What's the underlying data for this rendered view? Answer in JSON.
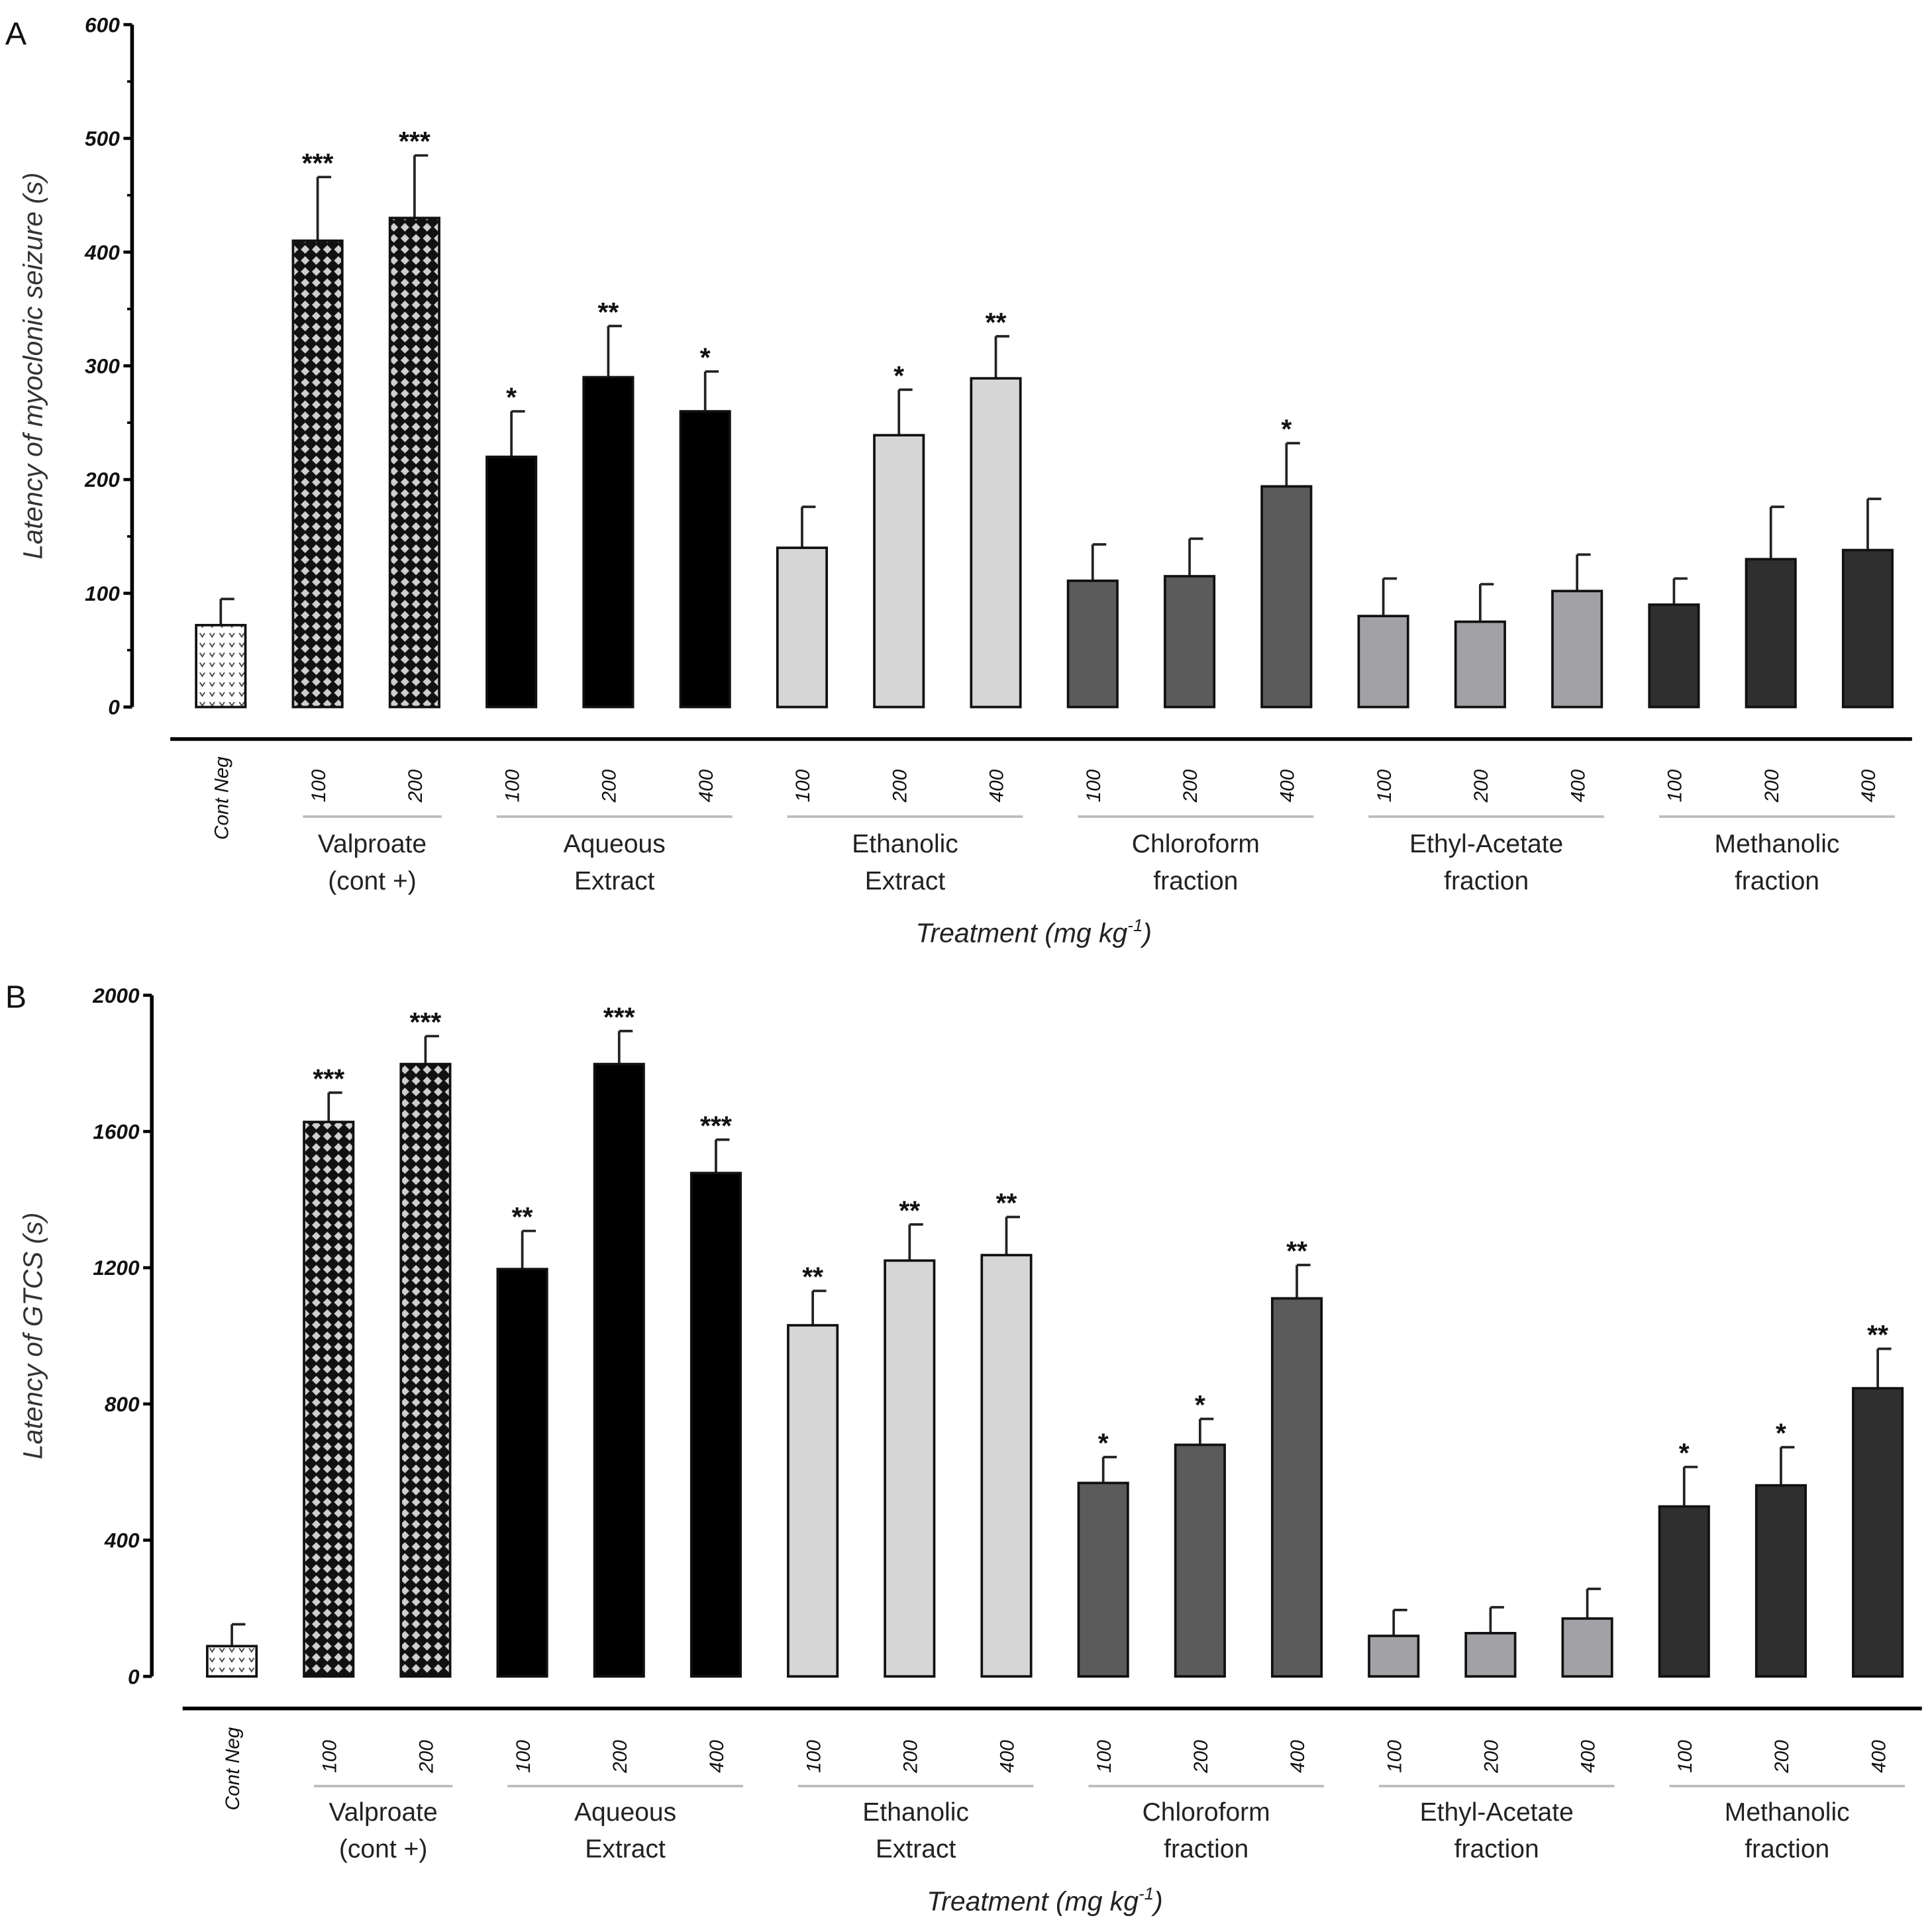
{
  "colors": {
    "cont_neg": "#ffffff",
    "valproate": "#111111",
    "valproate_pattern": "#cfcfcf",
    "aqueous": "#000000",
    "ethanolic": "#d6d6d6",
    "chloroform": "#5b5b5b",
    "ethyl_acetate": "#a2a2a6",
    "methanolic": "#2f2f2f"
  },
  "chart_data": [
    {
      "type": "bar",
      "panel": "A",
      "ylabel": "Latency of myoclonic seizure (s)",
      "xlabel": "Treatment (mg kg-1)",
      "xlabel_main": "Treatment (mg kg",
      "xlabel_sup": "-1",
      "xlabel_end": ")",
      "ylim": [
        0,
        600
      ],
      "yticks": [
        "0",
        "100",
        "200",
        "300",
        "400",
        "500",
        "600"
      ],
      "groups": [
        {
          "label": [
            "Cont Neg"
          ],
          "fill": "cont_neg",
          "bars": [
            {
              "dose": "Cont Neg",
              "value": 72,
              "err_top": 95,
              "sig": ""
            }
          ]
        },
        {
          "label": [
            "Valproate",
            "(cont +)"
          ],
          "fill": "valproate",
          "bars": [
            {
              "dose": "100",
              "value": 410,
              "err_top": 466,
              "sig": "***"
            },
            {
              "dose": "200",
              "value": 430,
              "err_top": 485,
              "sig": "***"
            }
          ]
        },
        {
          "label": [
            "Aqueous",
            "Extract"
          ],
          "fill": "aqueous",
          "bars": [
            {
              "dose": "100",
              "value": 220,
              "err_top": 260,
              "sig": "*"
            },
            {
              "dose": "200",
              "value": 290,
              "err_top": 335,
              "sig": "**"
            },
            {
              "dose": "400",
              "value": 260,
              "err_top": 295,
              "sig": "*"
            }
          ]
        },
        {
          "label": [
            "Ethanolic",
            "Extract"
          ],
          "fill": "ethanolic",
          "bars": [
            {
              "dose": "100",
              "value": 140,
              "err_top": 176,
              "sig": ""
            },
            {
              "dose": "200",
              "value": 239,
              "err_top": 279,
              "sig": "*"
            },
            {
              "dose": "400",
              "value": 289,
              "err_top": 326,
              "sig": "**"
            }
          ]
        },
        {
          "label": [
            "Chloroform",
            "fraction"
          ],
          "fill": "chloroform",
          "bars": [
            {
              "dose": "100",
              "value": 111,
              "err_top": 143,
              "sig": ""
            },
            {
              "dose": "200",
              "value": 115,
              "err_top": 148,
              "sig": ""
            },
            {
              "dose": "400",
              "value": 194,
              "err_top": 232,
              "sig": "*"
            }
          ]
        },
        {
          "label": [
            "Ethyl-Acetate",
            "fraction"
          ],
          "fill": "ethyl_acetate",
          "bars": [
            {
              "dose": "100",
              "value": 80,
              "err_top": 113,
              "sig": ""
            },
            {
              "dose": "200",
              "value": 75,
              "err_top": 108,
              "sig": ""
            },
            {
              "dose": "400",
              "value": 102,
              "err_top": 134,
              "sig": ""
            }
          ]
        },
        {
          "label": [
            "Methanolic",
            "fraction"
          ],
          "fill": "methanolic",
          "bars": [
            {
              "dose": "100",
              "value": 90,
              "err_top": 113,
              "sig": ""
            },
            {
              "dose": "200",
              "value": 130,
              "err_top": 176,
              "sig": ""
            },
            {
              "dose": "400",
              "value": 138,
              "err_top": 183,
              "sig": ""
            }
          ]
        }
      ]
    },
    {
      "type": "bar",
      "panel": "B",
      "ylabel": "Latency of GTCS (s)",
      "xlabel": "Treatment (mg kg-1)",
      "xlabel_main": "Treatment (mg kg",
      "xlabel_sup": "-1",
      "xlabel_end": ")",
      "ylim": [
        0,
        2000
      ],
      "yticks": [
        "0",
        "400",
        "800",
        "1200",
        "1600",
        "2000"
      ],
      "groups": [
        {
          "label": [
            "Cont Neg"
          ],
          "fill": "cont_neg",
          "bars": [
            {
              "dose": "Cont Neg",
              "value": 89,
              "err_top": 153,
              "sig": ""
            }
          ]
        },
        {
          "label": [
            "Valproate",
            "(cont +)"
          ],
          "fill": "valproate",
          "bars": [
            {
              "dose": "100",
              "value": 1628,
              "err_top": 1714,
              "sig": "***"
            },
            {
              "dose": "200",
              "value": 1798,
              "err_top": 1880,
              "sig": "***"
            }
          ]
        },
        {
          "label": [
            "Aqueous",
            "Extract"
          ],
          "fill": "aqueous",
          "bars": [
            {
              "dose": "100",
              "value": 1196,
              "err_top": 1308,
              "sig": "**"
            },
            {
              "dose": "200",
              "value": 1798,
              "err_top": 1895,
              "sig": "***"
            },
            {
              "dose": "400",
              "value": 1478,
              "err_top": 1576,
              "sig": "***"
            }
          ]
        },
        {
          "label": [
            "Ethanolic",
            "Extract"
          ],
          "fill": "ethanolic",
          "bars": [
            {
              "dose": "100",
              "value": 1031,
              "err_top": 1132,
              "sig": "**"
            },
            {
              "dose": "200",
              "value": 1221,
              "err_top": 1327,
              "sig": "**"
            },
            {
              "dose": "400",
              "value": 1237,
              "err_top": 1349,
              "sig": "**"
            }
          ]
        },
        {
          "label": [
            "Chloroform",
            "fraction"
          ],
          "fill": "chloroform",
          "bars": [
            {
              "dose": "100",
              "value": 568,
              "err_top": 644,
              "sig": "*"
            },
            {
              "dose": "200",
              "value": 680,
              "err_top": 756,
              "sig": "*"
            },
            {
              "dose": "400",
              "value": 1110,
              "err_top": 1208,
              "sig": "**"
            }
          ]
        },
        {
          "label": [
            "Ethyl-Acetate",
            "fraction"
          ],
          "fill": "ethyl_acetate",
          "bars": [
            {
              "dose": "100",
              "value": 119,
              "err_top": 195,
              "sig": ""
            },
            {
              "dose": "200",
              "value": 127,
              "err_top": 203,
              "sig": ""
            },
            {
              "dose": "400",
              "value": 170,
              "err_top": 257,
              "sig": ""
            }
          ]
        },
        {
          "label": [
            "Methanolic",
            "fraction"
          ],
          "fill": "methanolic",
          "bars": [
            {
              "dose": "100",
              "value": 499,
              "err_top": 615,
              "sig": "*"
            },
            {
              "dose": "200",
              "value": 561,
              "err_top": 673,
              "sig": "*"
            },
            {
              "dose": "400",
              "value": 846,
              "err_top": 962,
              "sig": "**"
            }
          ]
        }
      ]
    }
  ]
}
